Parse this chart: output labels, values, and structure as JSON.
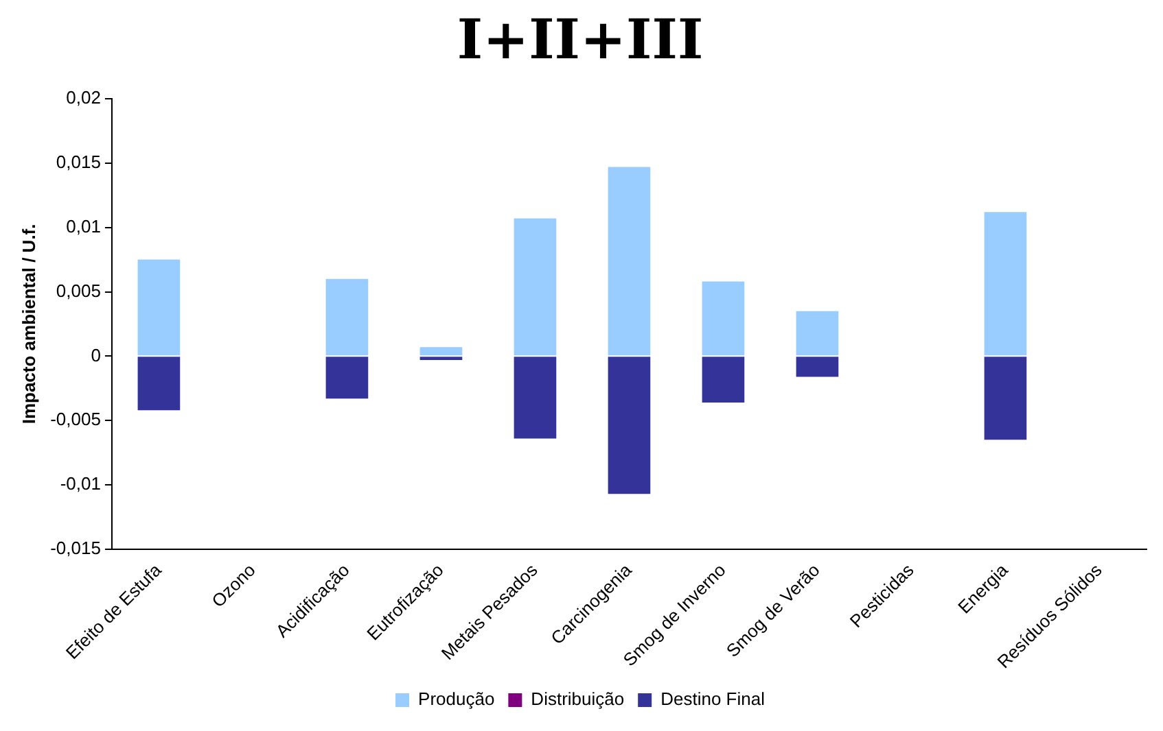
{
  "chart_data": {
    "type": "bar",
    "title": "I+II+III",
    "ylabel": "Impacto ambiental / U.f.",
    "categories": [
      "Efeito de Estufa",
      "Ozono",
      "Acidificação",
      "Eutrofização",
      "Metais Pesados",
      "Carcinogenia",
      "Smog de Inverno",
      "Smog de Verão",
      "Pesticidas",
      "Energia",
      "Resíduos Sólidos"
    ],
    "series": [
      {
        "name": "Produção",
        "color": "#99ccff",
        "values": [
          0.0075,
          0,
          0.006,
          0.0007,
          0.0107,
          0.0147,
          0.0058,
          0.0035,
          0,
          0.0112,
          0
        ]
      },
      {
        "name": "Distribuição",
        "color": "#800080",
        "values": [
          0,
          0,
          0,
          0,
          0,
          0,
          0,
          0,
          0,
          0,
          0
        ]
      },
      {
        "name": "Destino Final",
        "color": "#333399",
        "values": [
          -0.0042,
          0,
          -0.0033,
          -0.0003,
          -0.0064,
          -0.0107,
          -0.0036,
          -0.0016,
          0,
          -0.0065,
          0
        ]
      }
    ],
    "stacked": true,
    "ylim": [
      -0.015,
      0.02
    ],
    "yticks": [
      {
        "value": -0.015,
        "label": "-0,015"
      },
      {
        "value": -0.01,
        "label": "-0,01"
      },
      {
        "value": -0.005,
        "label": "-0,005"
      },
      {
        "value": 0,
        "label": "0"
      },
      {
        "value": 0.005,
        "label": "0,005"
      },
      {
        "value": 0.01,
        "label": "0,01"
      },
      {
        "value": 0.015,
        "label": "0,015"
      },
      {
        "value": 0.02,
        "label": "0,02"
      }
    ],
    "grid": false,
    "legend": "bottom"
  }
}
